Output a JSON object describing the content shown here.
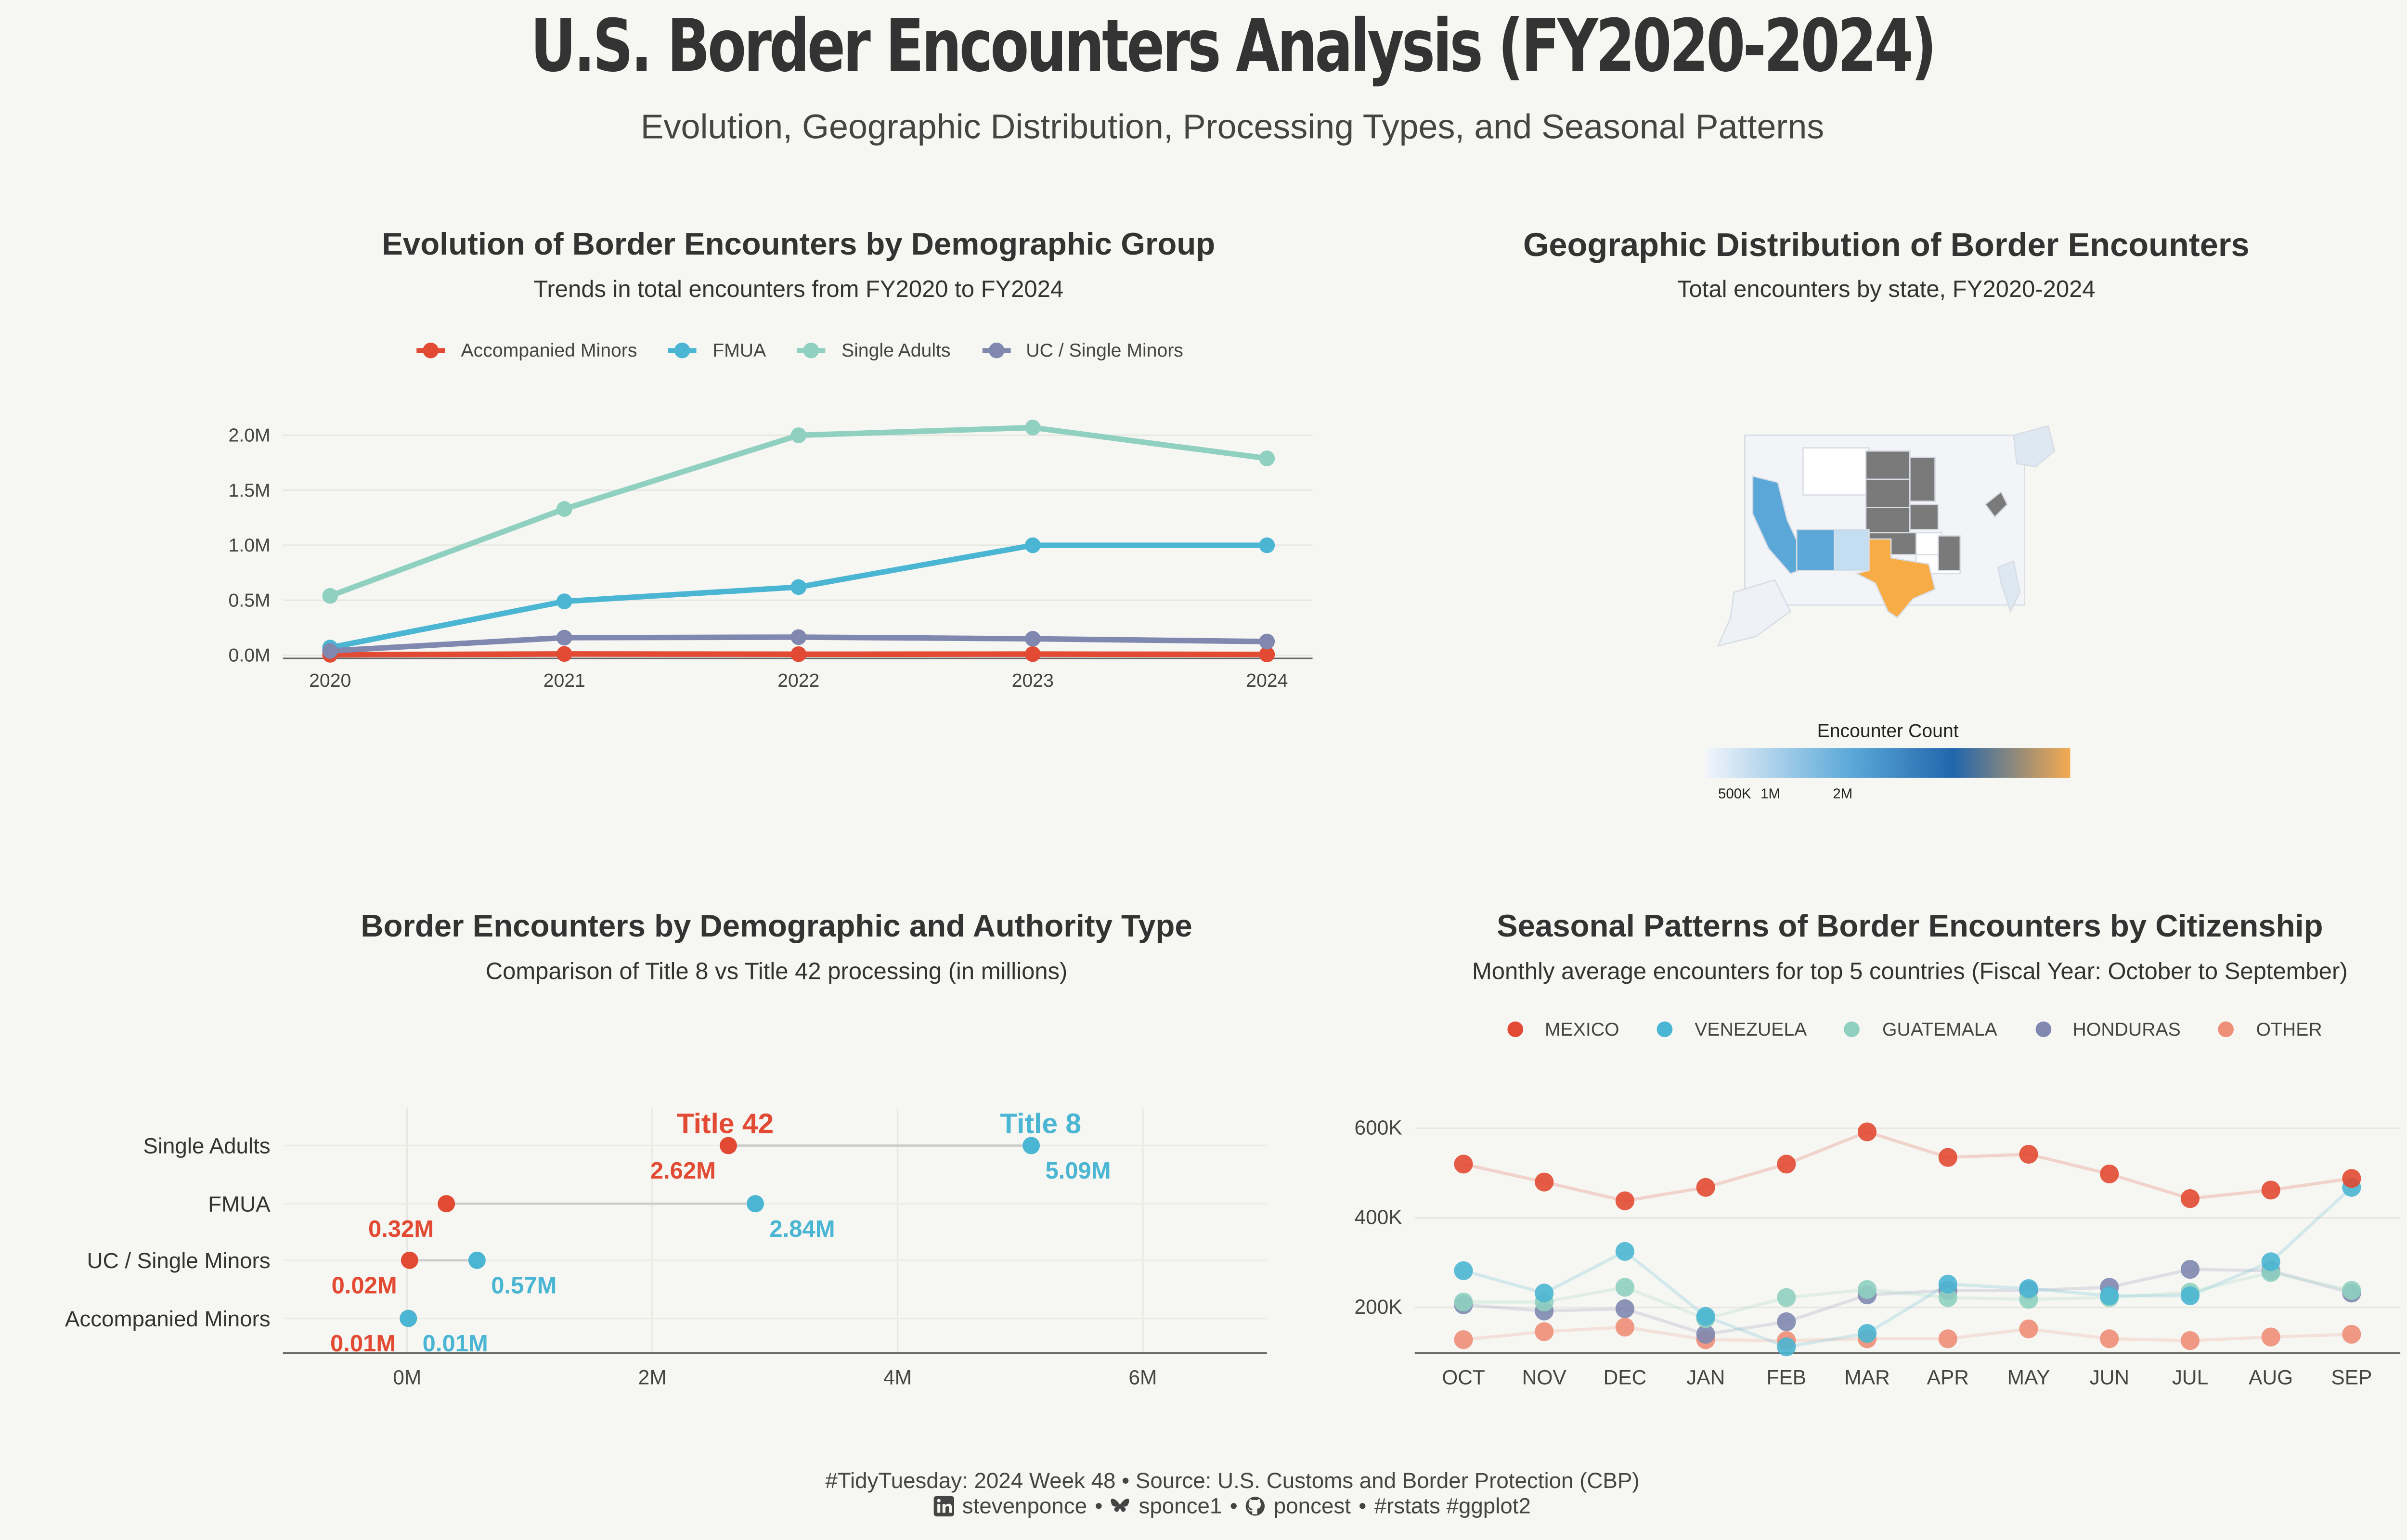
{
  "header": {
    "title": "U.S. Border Encounters Analysis (FY2020-2024)",
    "subtitle": "Evolution, Geographic Distribution, Processing Types, and Seasonal Patterns"
  },
  "panels": {
    "evolution": {
      "title": "Evolution of Border Encounters by Demographic Group",
      "subtitle": "Trends in total encounters from FY2020 to FY2024"
    },
    "geo": {
      "title": "Geographic Distribution of Border Encounters",
      "subtitle": "Total encounters by state, FY2020-2024",
      "legend_title": "Encounter Count",
      "legend_ticks": [
        "500K",
        "1M",
        "2M"
      ]
    },
    "authority": {
      "title": "Border Encounters by Demographic and Authority Type",
      "subtitle": "Comparison of Title 8 vs Title 42 processing (in millions)"
    },
    "seasonal": {
      "title": "Seasonal Patterns of Border Encounters by Citizenship",
      "subtitle": "Monthly average encounters for top 5 countries (Fiscal Year: October to September)"
    }
  },
  "footer": {
    "line1": "#TidyTuesday: 2024 Week 48 • Source: U.S. Customs and Border Protection (CBP)",
    "linkedin": "stevenponce",
    "bluesky": "sponce1",
    "github": "poncest",
    "tags": "#rstats #ggplot2",
    "sep": "•"
  },
  "colors": {
    "red": "#e24a33",
    "blue": "#4bb6d3",
    "green": "#8fd0c0",
    "purple": "#8088b0",
    "salmon": "#ee8f78",
    "gray": "#7a7a7a",
    "orange": "#f8ac45"
  },
  "chart_data": [
    {
      "type": "line",
      "x": [
        2020,
        2021,
        2022,
        2023,
        2024
      ],
      "ylim": [
        0,
        2100000
      ],
      "y_ticks": [
        "0.0M",
        "0.5M",
        "1.0M",
        "1.5M",
        "2.0M"
      ],
      "series": [
        {
          "name": "Accompanied Minors",
          "color": "#e24a33",
          "values": [
            5000,
            12000,
            10000,
            11000,
            8000
          ]
        },
        {
          "name": "FMUA",
          "color": "#4bb6d3",
          "values": [
            70000,
            490000,
            620000,
            1000000,
            1000000
          ]
        },
        {
          "name": "Single Adults",
          "color": "#8fd0c0",
          "values": [
            540000,
            1330000,
            2000000,
            2070000,
            1790000
          ]
        },
        {
          "name": "UC / Single Minors",
          "color": "#8088b0",
          "values": [
            40000,
            160000,
            165000,
            150000,
            125000
          ]
        }
      ]
    },
    {
      "type": "map",
      "scale_stops": [
        "#f2f5fb",
        "#5ba8d8",
        "#2166ac",
        "#f4aa50"
      ],
      "states_highlight": [
        {
          "state": "TX",
          "fill": "#f8ac45"
        },
        {
          "state": "CA",
          "fill": "#5ba8d8"
        },
        {
          "state": "AZ",
          "fill": "#5ba8d8"
        },
        {
          "state": "NM",
          "fill": "#c5ddf0"
        }
      ]
    },
    {
      "type": "dumbbell",
      "xlim": [
        -1,
        7
      ],
      "x_ticks": [
        "0M",
        "2M",
        "4M",
        "6M"
      ],
      "title8_label": "Title 8",
      "title42_label": "Title 42",
      "rows": [
        {
          "group": "Single Adults",
          "title42": 2.62,
          "title8": 5.09,
          "t42_label": "2.62M",
          "t8_label": "5.09M"
        },
        {
          "group": "FMUA",
          "title42": 0.32,
          "title8": 2.84,
          "t42_label": "0.32M",
          "t8_label": "2.84M"
        },
        {
          "group": "UC / Single Minors",
          "title42": 0.02,
          "title8": 0.57,
          "t42_label": "0.02M",
          "t8_label": "0.57M"
        },
        {
          "group": "Accompanied Minors",
          "title42": 0.01,
          "title8": 0.01,
          "t42_label": "0.01M",
          "t8_label": "0.01M"
        }
      ]
    },
    {
      "type": "line",
      "categories": [
        "OCT",
        "NOV",
        "DEC",
        "JAN",
        "FEB",
        "MAR",
        "APR",
        "MAY",
        "JUN",
        "JUL",
        "AUG",
        "SEP"
      ],
      "ylim": [
        100000,
        620000
      ],
      "y_ticks": [
        "200K",
        "400K",
        "600K"
      ],
      "series": [
        {
          "name": "MEXICO",
          "color": "#e24a33",
          "values": [
            520000,
            480000,
            438000,
            468000,
            520000,
            592000,
            535000,
            542000,
            498000,
            443000,
            462000,
            488000
          ]
        },
        {
          "name": "VENEZUELA",
          "color": "#4bb6d3",
          "values": [
            282000,
            232000,
            325000,
            180000,
            112000,
            142000,
            252000,
            242000,
            226000,
            226000,
            302000,
            468000
          ]
        },
        {
          "name": "GUATEMALA",
          "color": "#8fd0c0",
          "values": [
            212000,
            212000,
            245000,
            175000,
            222000,
            240000,
            222000,
            218000,
            222000,
            234000,
            278000,
            238000
          ]
        },
        {
          "name": "HONDURAS",
          "color": "#8088b0",
          "values": [
            206000,
            192000,
            197000,
            140000,
            168000,
            228000,
            238000,
            238000,
            245000,
            285000,
            282000,
            232000
          ]
        },
        {
          "name": "OTHER",
          "color": "#ee8f78",
          "values": [
            128000,
            146000,
            156000,
            128000,
            126000,
            130000,
            130000,
            152000,
            130000,
            126000,
            134000,
            140000
          ]
        }
      ]
    }
  ]
}
